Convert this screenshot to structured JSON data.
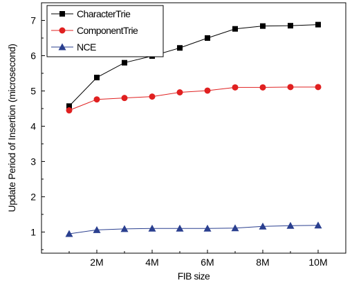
{
  "chart_data": {
    "type": "line",
    "title": "",
    "xlabel": "FIB size",
    "ylabel": "Update Period of Insertion (microsecond)",
    "x": [
      1,
      2,
      3,
      4,
      5,
      6,
      7,
      8,
      9,
      10
    ],
    "xlim": [
      0,
      11
    ],
    "ylim": [
      0.4,
      7.5
    ],
    "x_ticks": [
      {
        "value": 2,
        "label": "2M"
      },
      {
        "value": 4,
        "label": "4M"
      },
      {
        "value": 6,
        "label": "6M"
      },
      {
        "value": 8,
        "label": "8M"
      },
      {
        "value": 10,
        "label": "10M"
      }
    ],
    "y_ticks": [
      {
        "value": 1,
        "label": "1"
      },
      {
        "value": 2,
        "label": "2"
      },
      {
        "value": 3,
        "label": "3"
      },
      {
        "value": 4,
        "label": "4"
      },
      {
        "value": 5,
        "label": "5"
      },
      {
        "value": 6,
        "label": "6"
      },
      {
        "value": 7,
        "label": "7"
      }
    ],
    "grid": false,
    "legend_position": "top-left",
    "series": [
      {
        "name": "CharacterTrie",
        "color": "#000000",
        "marker": "square",
        "values": [
          4.57,
          5.38,
          5.8,
          5.99,
          6.22,
          6.5,
          6.76,
          6.84,
          6.85,
          6.88
        ]
      },
      {
        "name": "ComponentTrie",
        "color": "#e02020",
        "marker": "circle",
        "values": [
          4.45,
          4.76,
          4.8,
          4.84,
          4.96,
          5.01,
          5.1,
          5.1,
          5.11,
          5.11
        ]
      },
      {
        "name": "NCE",
        "color": "#2a3f8f",
        "marker": "triangle",
        "values": [
          0.95,
          1.06,
          1.09,
          1.1,
          1.1,
          1.1,
          1.11,
          1.16,
          1.18,
          1.19
        ]
      }
    ]
  }
}
